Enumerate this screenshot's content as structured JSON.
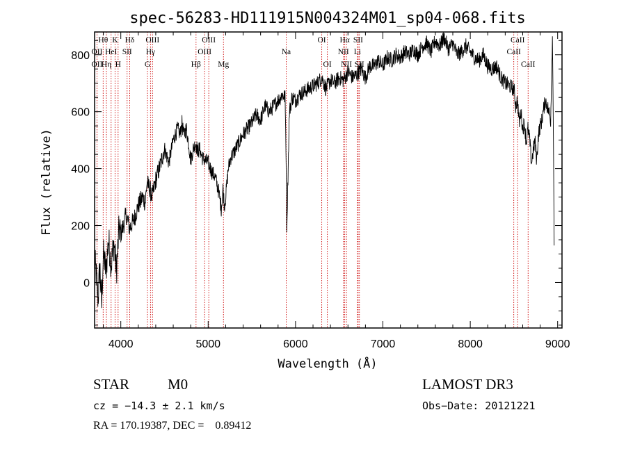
{
  "chart_data": {
    "type": "line",
    "title": "spec-56283-HD111915N004324M01_sp04-068.fits",
    "xlabel": "Wavelength (Å)",
    "ylabel": "Flux (relative)",
    "xlim": [
      3700,
      9050
    ],
    "ylim": [
      -160,
      880
    ],
    "xticks": [
      4000,
      5000,
      6000,
      7000,
      8000,
      9000
    ],
    "yticks": [
      0,
      200,
      400,
      600,
      800
    ],
    "series": [
      {
        "name": "flux",
        "x": [
          3700,
          3720,
          3740,
          3760,
          3780,
          3800,
          3830,
          3860,
          3890,
          3920,
          3950,
          3980,
          4000,
          4030,
          4060,
          4100,
          4150,
          4200,
          4250,
          4280,
          4300,
          4330,
          4360,
          4400,
          4450,
          4500,
          4550,
          4600,
          4650,
          4680,
          4700,
          4720,
          4750,
          4780,
          4800,
          4830,
          4860,
          4880,
          4900,
          4930,
          4960,
          5000,
          5040,
          5080,
          5120,
          5150,
          5170,
          5185,
          5200,
          5230,
          5260,
          5300,
          5350,
          5400,
          5450,
          5500,
          5550,
          5600,
          5650,
          5700,
          5750,
          5800,
          5850,
          5880,
          5890,
          5895,
          5900,
          5910,
          5930,
          5960,
          6000,
          6050,
          6100,
          6150,
          6200,
          6250,
          6300,
          6350,
          6400,
          6450,
          6500,
          6550,
          6600,
          6650,
          6700,
          6750,
          6800,
          6850,
          6900,
          6950,
          7000,
          7050,
          7100,
          7150,
          7200,
          7250,
          7300,
          7350,
          7400,
          7450,
          7500,
          7550,
          7600,
          7650,
          7700,
          7750,
          7800,
          7850,
          7900,
          7950,
          8000,
          8050,
          8100,
          8150,
          8200,
          8250,
          8300,
          8350,
          8400,
          8450,
          8500,
          8520,
          8540,
          8560,
          8580,
          8600,
          8620,
          8640,
          8660,
          8680,
          8700,
          8720,
          8740,
          8760,
          8780,
          8800,
          8820,
          8840,
          8860,
          8880,
          8900,
          8920,
          8940,
          8950,
          8960
        ],
        "y": [
          80,
          20,
          -60,
          60,
          -80,
          100,
          40,
          150,
          60,
          140,
          40,
          190,
          170,
          200,
          240,
          190,
          220,
          270,
          300,
          280,
          350,
          330,
          300,
          360,
          410,
          470,
          420,
          500,
          540,
          520,
          560,
          520,
          540,
          480,
          430,
          470,
          490,
          460,
          470,
          440,
          430,
          420,
          390,
          370,
          320,
          260,
          330,
          270,
          300,
          400,
          440,
          460,
          490,
          520,
          540,
          560,
          590,
          570,
          620,
          600,
          620,
          640,
          660,
          650,
          480,
          340,
          200,
          330,
          600,
          650,
          640,
          660,
          670,
          680,
          690,
          700,
          720,
          680,
          710,
          700,
          720,
          710,
          740,
          720,
          730,
          750,
          720,
          760,
          760,
          780,
          760,
          790,
          780,
          800,
          790,
          810,
          800,
          820,
          800,
          830,
          840,
          810,
          850,
          830,
          860,
          820,
          840,
          800,
          810,
          830,
          810,
          790,
          780,
          800,
          760,
          750,
          760,
          720,
          700,
          690,
          680,
          620,
          640,
          560,
          600,
          540,
          560,
          490,
          540,
          500,
          420,
          460,
          500,
          430,
          520,
          550,
          570,
          610,
          640,
          620,
          600,
          570,
          860,
          600,
          130
        ]
      }
    ],
    "spectral_lines": [
      {
        "label": "Hθ",
        "wave": 3798,
        "row": 0
      },
      {
        "label": "K",
        "wave": 3934,
        "row": 0
      },
      {
        "label": "Hδ",
        "wave": 4102,
        "row": 0
      },
      {
        "label": "OIII",
        "wave": 4363,
        "row": 0
      },
      {
        "label": "OIII",
        "wave": 5007,
        "row": 0
      },
      {
        "label": "OI",
        "wave": 6300,
        "row": 0
      },
      {
        "label": "Hα",
        "wave": 6563,
        "row": 0
      },
      {
        "label": "SII",
        "wave": 6717,
        "row": 0
      },
      {
        "label": "CaII",
        "wave": 8542,
        "row": 0
      },
      {
        "label": "OII",
        "wave": 3727,
        "row": 1
      },
      {
        "label": "HeI",
        "wave": 3889,
        "row": 1
      },
      {
        "label": "SII",
        "wave": 4072,
        "row": 1
      },
      {
        "label": "Hγ",
        "wave": 4340,
        "row": 1
      },
      {
        "label": "OIII",
        "wave": 4959,
        "row": 1
      },
      {
        "label": "Na",
        "wave": 5893,
        "row": 1
      },
      {
        "label": "NII",
        "wave": 6548,
        "row": 1
      },
      {
        "label": "Li",
        "wave": 6708,
        "row": 1
      },
      {
        "label": "CaII",
        "wave": 8498,
        "row": 1
      },
      {
        "label": "OII",
        "wave": 3727,
        "row": 2
      },
      {
        "label": "Hη",
        "wave": 3835,
        "row": 2
      },
      {
        "label": "H",
        "wave": 3969,
        "row": 2
      },
      {
        "label": "G",
        "wave": 4305,
        "row": 2
      },
      {
        "label": "Hβ",
        "wave": 4861,
        "row": 2
      },
      {
        "label": "Mg",
        "wave": 5175,
        "row": 2
      },
      {
        "label": "OI",
        "wave": 6364,
        "row": 2
      },
      {
        "label": "NII",
        "wave": 6583,
        "row": 2
      },
      {
        "label": "SII",
        "wave": 6731,
        "row": 2
      },
      {
        "label": "CaII",
        "wave": 8662,
        "row": 2
      }
    ],
    "colors": {
      "data": "#000000",
      "lines": "#cc0000",
      "axes": "#000000"
    }
  },
  "info": {
    "class": "STAR",
    "subclass": "M0",
    "survey": "LAMOST DR3",
    "cz": "cz = −14.3 ± 2.1 km/s",
    "obs_date": "Obs−Date: 20121221",
    "radec": "RA = 170.19387, DEC =    0.89412"
  }
}
